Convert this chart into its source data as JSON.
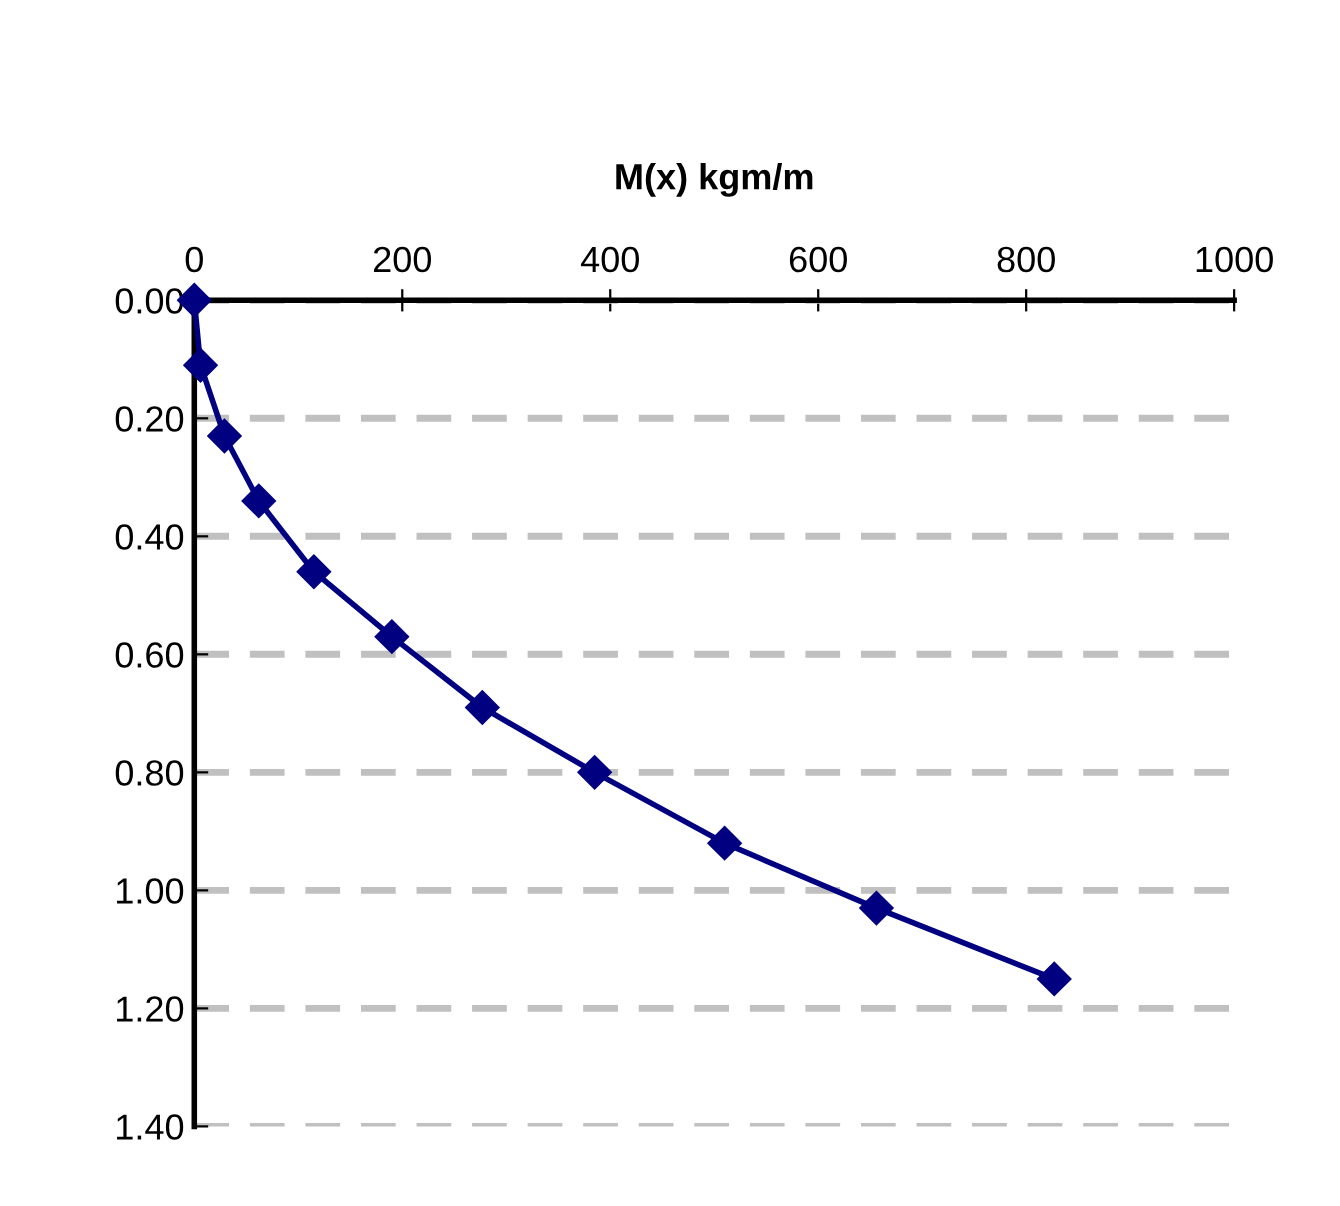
{
  "chart_data": {
    "type": "line",
    "title": "M(x) kgm/m",
    "x": [
      0,
      6,
      29,
      62,
      115,
      190,
      277,
      385,
      510,
      656,
      827
    ],
    "series": [
      {
        "color": "#000080",
        "values": [
          0,
          0.11,
          0.23,
          0.34,
          0.46,
          0.57,
          0.69,
          0.8,
          0.92,
          1.03,
          1.15
        ]
      }
    ],
    "xlim": [
      0,
      1000
    ],
    "xticks": [
      0,
      200,
      400,
      600,
      800,
      1000
    ],
    "ylim": [
      1.4,
      0
    ],
    "yticks": [
      {
        "value": 0,
        "label": "0.00"
      },
      {
        "value": 0.2,
        "label": "0.20"
      },
      {
        "value": 0.4,
        "label": "0.40"
      },
      {
        "value": 0.6,
        "label": "0.60"
      },
      {
        "value": 0.8,
        "label": "0.80"
      },
      {
        "value": 1.0,
        "label": "1.00"
      },
      {
        "value": 1.2,
        "label": "1.20"
      },
      {
        "value": 1.4,
        "label": "1.40"
      }
    ],
    "grid": "y",
    "marker": "diamond",
    "line_style": "solid"
  }
}
